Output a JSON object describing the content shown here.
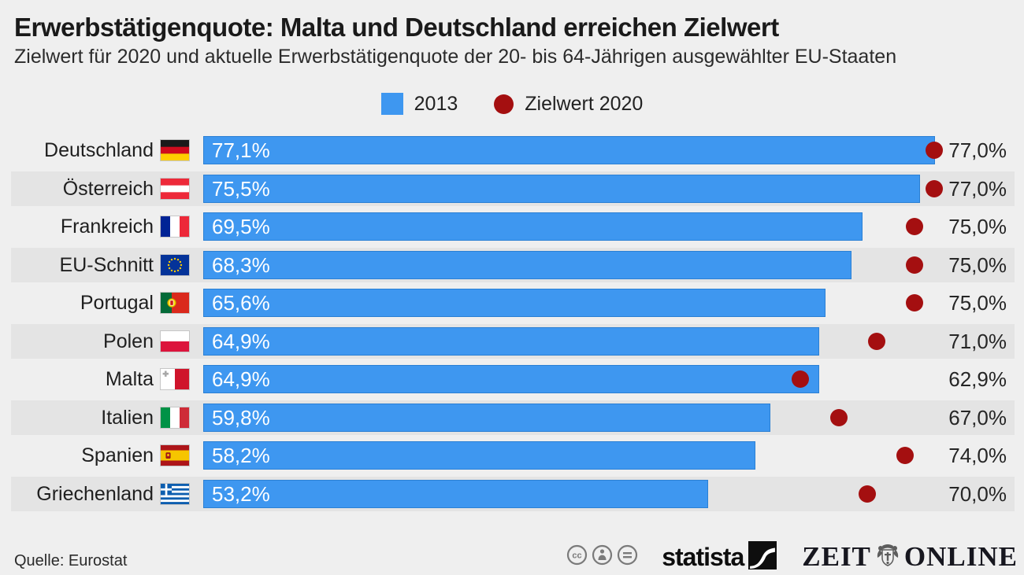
{
  "header": {
    "title": "Erwerbstätigenquote: Malta und Deutschland erreichen Zielwert",
    "subtitle": "Zielwert für 2020 und aktuelle Erwerbstätigenquote der 20- bis 64-Jährigen ausgewählter EU-Staaten"
  },
  "legend": {
    "bar_label": "2013",
    "dot_label": "Zielwert 2020"
  },
  "chart_data": {
    "type": "bar",
    "orientation": "horizontal",
    "title": "Erwerbstätigenquote: Malta und Deutschland erreichen Zielwert",
    "categories": [
      "Deutschland",
      "Österreich",
      "Frankreich",
      "EU-Schnitt",
      "Portugal",
      "Polen",
      "Malta",
      "Italien",
      "Spanien",
      "Griechenland"
    ],
    "series": [
      {
        "name": "2013",
        "type": "bar",
        "values": [
          77.1,
          75.5,
          69.5,
          68.3,
          65.6,
          64.9,
          64.9,
          59.8,
          58.2,
          53.2
        ]
      },
      {
        "name": "Zielwert 2020",
        "type": "dot",
        "values": [
          77.0,
          77.0,
          75.0,
          75.0,
          75.0,
          71.0,
          62.9,
          67.0,
          74.0,
          70.0
        ]
      }
    ],
    "value_suffix": "%",
    "axes_visible": false,
    "legend_position": "top-center",
    "grid": false
  },
  "rows": [
    {
      "country": "Deutschland",
      "flag": "de",
      "value": 77.1,
      "value_label": "77,1%",
      "target": 77.0,
      "target_label": "77,0%"
    },
    {
      "country": "Österreich",
      "flag": "at",
      "value": 75.5,
      "value_label": "75,5%",
      "target": 77.0,
      "target_label": "77,0%"
    },
    {
      "country": "Frankreich",
      "flag": "fr",
      "value": 69.5,
      "value_label": "69,5%",
      "target": 75.0,
      "target_label": "75,0%"
    },
    {
      "country": "EU-Schnitt",
      "flag": "eu",
      "value": 68.3,
      "value_label": "68,3%",
      "target": 75.0,
      "target_label": "75,0%"
    },
    {
      "country": "Portugal",
      "flag": "pt",
      "value": 65.6,
      "value_label": "65,6%",
      "target": 75.0,
      "target_label": "75,0%"
    },
    {
      "country": "Polen",
      "flag": "pl",
      "value": 64.9,
      "value_label": "64,9%",
      "target": 71.0,
      "target_label": "71,0%"
    },
    {
      "country": "Malta",
      "flag": "mt",
      "value": 64.9,
      "value_label": "64,9%",
      "target": 62.9,
      "target_label": "62,9%"
    },
    {
      "country": "Italien",
      "flag": "it",
      "value": 59.8,
      "value_label": "59,8%",
      "target": 67.0,
      "target_label": "67,0%"
    },
    {
      "country": "Spanien",
      "flag": "es",
      "value": 58.2,
      "value_label": "58,2%",
      "target": 74.0,
      "target_label": "74,0%"
    },
    {
      "country": "Griechenland",
      "flag": "gr",
      "value": 53.2,
      "value_label": "53,2%",
      "target": 70.0,
      "target_label": "70,0%"
    }
  ],
  "footer": {
    "source": "Quelle: Eurostat",
    "license_icons": [
      "cc",
      "by",
      "nd"
    ],
    "statista_label": "statista",
    "zeit_label": "ZEIT",
    "online_label": "ONLINE"
  },
  "colors": {
    "background": "#efefef",
    "band": "#e4e4e4",
    "bar": "#3e97f0",
    "bar_border": "#2b80d4",
    "dot": "#a40f10",
    "title_text": "#1a1a1a",
    "icon_gray": "#7a7a7a"
  }
}
